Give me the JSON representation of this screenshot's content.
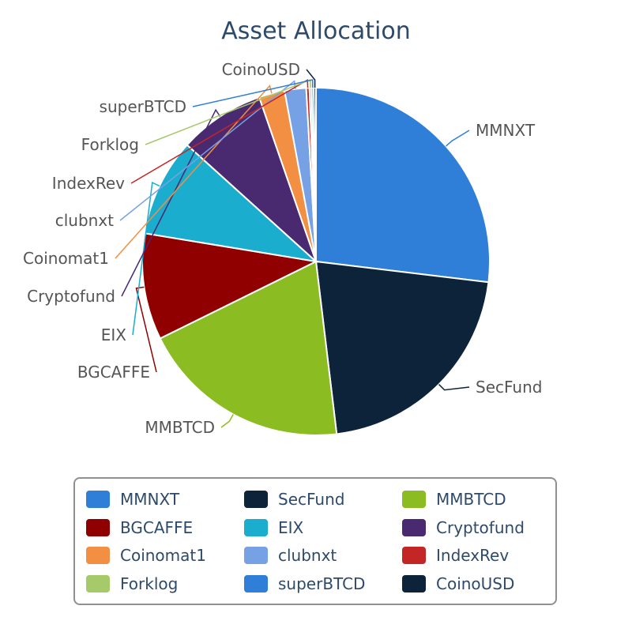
{
  "chart_data": {
    "type": "pie",
    "title": "Asset Allocation",
    "slices": [
      {
        "label": "MMNXT",
        "value": 26.9,
        "color": "#2f7ed8"
      },
      {
        "label": "SecFund",
        "value": 21.2,
        "color": "#0d233a"
      },
      {
        "label": "MMBTCD",
        "value": 19.6,
        "color": "#8bbc21"
      },
      {
        "label": "BGCAFFE",
        "value": 9.9,
        "color": "#910000"
      },
      {
        "label": "EIX",
        "value": 9.1,
        "color": "#1aadce"
      },
      {
        "label": "Cryptofund",
        "value": 8.0,
        "color": "#492970"
      },
      {
        "label": "Coinomat1",
        "value": 2.4,
        "color": "#f28f43"
      },
      {
        "label": "clubnxt",
        "value": 2.0,
        "color": "#77a1e5"
      },
      {
        "label": "IndexRev",
        "value": 0.3,
        "color": "#c42525"
      },
      {
        "label": "Forklog",
        "value": 0.2,
        "color": "#a6c96a"
      },
      {
        "label": "superBTCD",
        "value": 0.2,
        "color": "#2f7ed8"
      },
      {
        "label": "CoinoUSD",
        "value": 0.2,
        "color": "#0d233a"
      }
    ],
    "legend_position": "bottom"
  }
}
